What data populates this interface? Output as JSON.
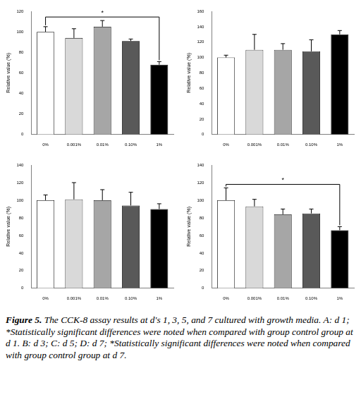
{
  "chart_data": [
    {
      "type": "bar",
      "categories": [
        "0%",
        "0.001%",
        "0.01%",
        "0.10%",
        "1%"
      ],
      "values": [
        100,
        94,
        105,
        91,
        68
      ],
      "errors": [
        5,
        9,
        6,
        2,
        3
      ],
      "colors": [
        "#ffffff",
        "#d9d9d9",
        "#a6a6a6",
        "#595959",
        "#000000"
      ],
      "y_label": "Relative value (%)",
      "ylim": [
        0,
        120
      ],
      "yticks": [
        0,
        20,
        40,
        60,
        80,
        100,
        120
      ],
      "grid": false,
      "annotations": [
        {
          "text": "*",
          "from": "0%",
          "to": "1%"
        }
      ]
    },
    {
      "type": "bar",
      "categories": [
        "0%",
        "0.001%",
        "0.01%",
        "0.10%",
        "1%"
      ],
      "values": [
        100,
        110,
        110,
        108,
        130
      ],
      "errors": [
        3,
        20,
        8,
        15,
        5
      ],
      "colors": [
        "#ffffff",
        "#d9d9d9",
        "#a6a6a6",
        "#595959",
        "#000000"
      ],
      "y_label": "Relative value (%)",
      "ylim": [
        0,
        160
      ],
      "yticks": [
        0,
        20,
        40,
        60,
        80,
        100,
        120,
        140,
        160
      ],
      "grid": false
    },
    {
      "type": "bar",
      "categories": [
        "0%",
        "0.001%",
        "0.01%",
        "0.10%",
        "1%"
      ],
      "values": [
        100,
        101,
        100,
        94,
        90
      ],
      "errors": [
        6,
        19,
        12,
        15,
        6
      ],
      "colors": [
        "#ffffff",
        "#d9d9d9",
        "#a6a6a6",
        "#595959",
        "#000000"
      ],
      "y_label": "Relative value (%)",
      "ylim": [
        0,
        140
      ],
      "yticks": [
        0,
        20,
        40,
        60,
        80,
        100,
        120,
        140
      ],
      "grid": false
    },
    {
      "type": "bar",
      "categories": [
        "0%",
        "0.001%",
        "0.01%",
        "0.10%",
        "1%"
      ],
      "values": [
        100,
        93,
        84,
        85,
        66
      ],
      "errors": [
        14,
        8,
        6,
        5,
        4
      ],
      "colors": [
        "#ffffff",
        "#d9d9d9",
        "#a6a6a6",
        "#595959",
        "#000000"
      ],
      "y_label": "Relative value (%)",
      "ylim": [
        0,
        140
      ],
      "yticks": [
        0,
        20,
        40,
        60,
        80,
        100,
        120,
        140
      ],
      "grid": false,
      "annotations": [
        {
          "text": "*",
          "from": "0%",
          "to": "1%"
        }
      ]
    }
  ],
  "caption": {
    "label": "Figure 5.",
    "text": "The CCK-8 assay results at d's 1, 3, 5, and 7 cultured with growth media. A: d 1; *Statistically significant differences were noted when compared with group control group at d 1. B: d 3; C: d 5; D: d 7; *Statistically significant differences were noted when compared with group control group at d 7."
  }
}
